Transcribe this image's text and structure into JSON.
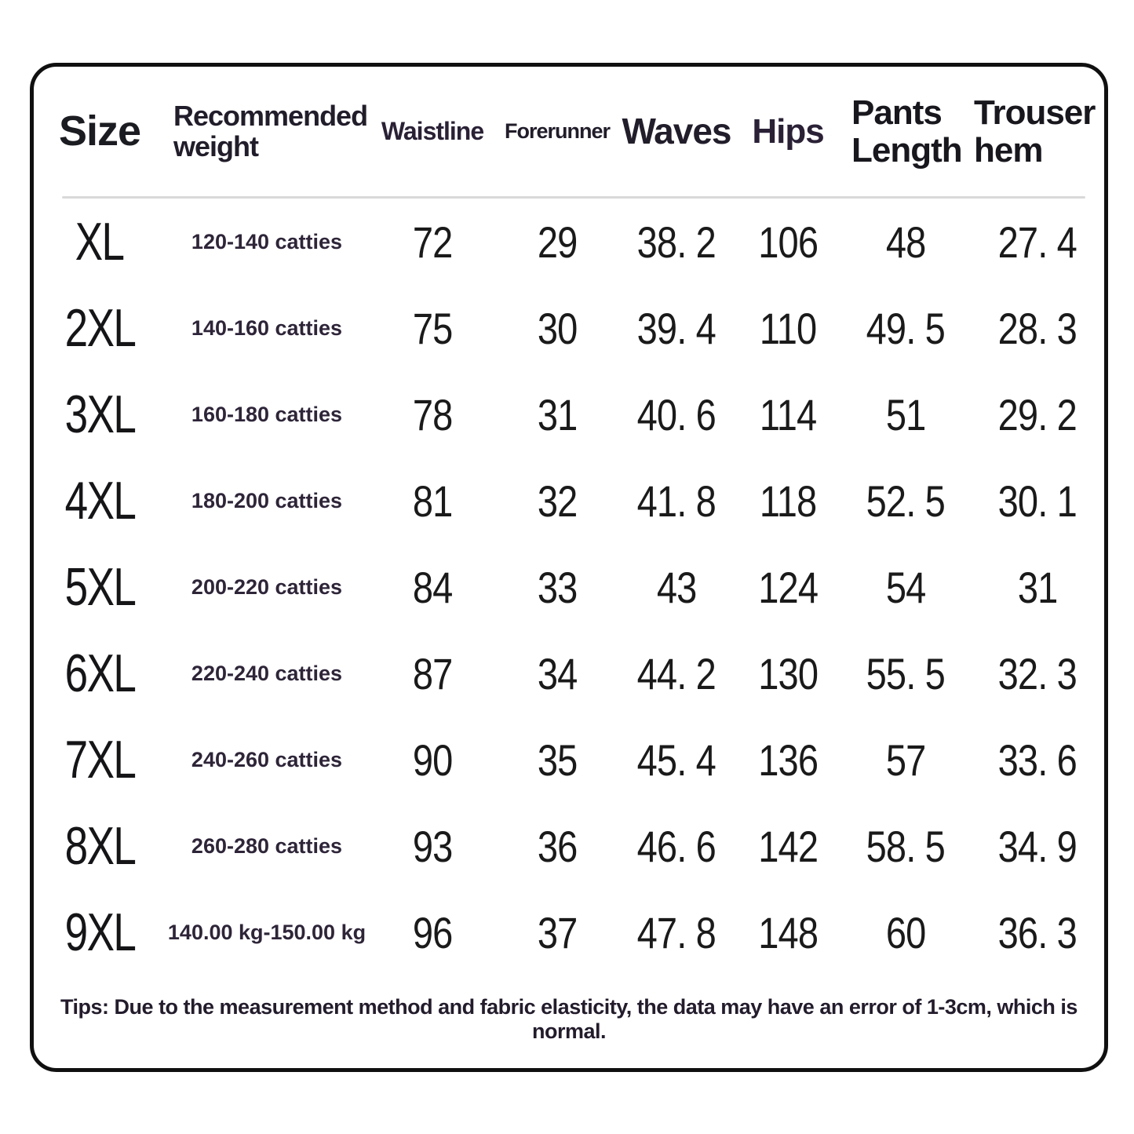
{
  "colors": {
    "border": "#101010",
    "divider": "#d9d9d9",
    "text_primary": "#1a1a1a",
    "text_accent": "#2e2539"
  },
  "table": {
    "columns": [
      {
        "key": "size",
        "label": "Size"
      },
      {
        "key": "weight",
        "label": "Recommended weight"
      },
      {
        "key": "waistline",
        "label": "Waistline"
      },
      {
        "key": "forerunner",
        "label": "Forerunner"
      },
      {
        "key": "waves",
        "label": "Waves"
      },
      {
        "key": "hips",
        "label": "Hips"
      },
      {
        "key": "pants_length",
        "label": "Pants Length"
      },
      {
        "key": "trouser_hem",
        "label": "Trouser hem"
      }
    ],
    "rows": [
      {
        "size": "XL",
        "weight": "120-140 catties",
        "waistline": "72",
        "forerunner": "29",
        "waves": "38. 2",
        "hips": "106",
        "pants_length": "48",
        "trouser_hem": "27. 4"
      },
      {
        "size": "2XL",
        "weight": "140-160 catties",
        "waistline": "75",
        "forerunner": "30",
        "waves": "39. 4",
        "hips": "110",
        "pants_length": "49. 5",
        "trouser_hem": "28. 3"
      },
      {
        "size": "3XL",
        "weight": "160-180 catties",
        "waistline": "78",
        "forerunner": "31",
        "waves": "40. 6",
        "hips": "114",
        "pants_length": "51",
        "trouser_hem": "29. 2"
      },
      {
        "size": "4XL",
        "weight": "180-200 catties",
        "waistline": "81",
        "forerunner": "32",
        "waves": "41. 8",
        "hips": "118",
        "pants_length": "52. 5",
        "trouser_hem": "30. 1"
      },
      {
        "size": "5XL",
        "weight": "200-220 catties",
        "waistline": "84",
        "forerunner": "33",
        "waves": "43",
        "hips": "124",
        "pants_length": "54",
        "trouser_hem": "31"
      },
      {
        "size": "6XL",
        "weight": "220-240 catties",
        "waistline": "87",
        "forerunner": "34",
        "waves": "44. 2",
        "hips": "130",
        "pants_length": "55. 5",
        "trouser_hem": "32. 3"
      },
      {
        "size": "7XL",
        "weight": "240-260 catties",
        "waistline": "90",
        "forerunner": "35",
        "waves": "45. 4",
        "hips": "136",
        "pants_length": "57",
        "trouser_hem": "33. 6"
      },
      {
        "size": "8XL",
        "weight": "260-280 catties",
        "waistline": "93",
        "forerunner": "36",
        "waves": "46. 6",
        "hips": "142",
        "pants_length": "58. 5",
        "trouser_hem": "34. 9"
      },
      {
        "size": "9XL",
        "weight": "140.00 kg-150.00 kg",
        "waistline": "96",
        "forerunner": "37",
        "waves": "47. 8",
        "hips": "148",
        "pants_length": "60",
        "trouser_hem": "36. 3"
      }
    ],
    "note": "Tips: Due to the measurement method and fabric elasticity, the data may have an error of 1-3cm, which is normal."
  }
}
